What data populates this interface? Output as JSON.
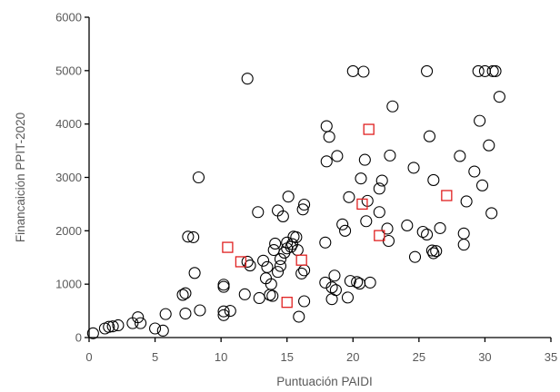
{
  "chart_data": {
    "type": "scatter",
    "title": "",
    "xlabel": "Puntuación PAIDI",
    "ylabel": "Financaición PPIT-2020",
    "xlim": [
      0,
      35
    ],
    "ylim": [
      0,
      6000
    ],
    "xticks": [
      0,
      5,
      10,
      15,
      20,
      25,
      30,
      35
    ],
    "yticks": [
      0,
      1000,
      2000,
      3000,
      4000,
      5000,
      6000
    ],
    "grid": false,
    "legend": "none",
    "series": [
      {
        "marker": "circle",
        "color": "#000000",
        "points": [
          [
            0.3,
            80
          ],
          [
            1.2,
            170
          ],
          [
            1.5,
            200
          ],
          [
            1.8,
            210
          ],
          [
            2.2,
            230
          ],
          [
            3.3,
            270
          ],
          [
            3.7,
            380
          ],
          [
            3.9,
            270
          ],
          [
            5.0,
            170
          ],
          [
            5.6,
            130
          ],
          [
            5.8,
            440
          ],
          [
            7.1,
            800
          ],
          [
            7.3,
            830
          ],
          [
            7.3,
            450
          ],
          [
            7.5,
            1890
          ],
          [
            7.9,
            1880
          ],
          [
            8.0,
            1210
          ],
          [
            8.3,
            3000
          ],
          [
            8.4,
            510
          ],
          [
            10.2,
            990
          ],
          [
            10.2,
            950
          ],
          [
            10.2,
            490
          ],
          [
            10.2,
            420
          ],
          [
            10.7,
            500
          ],
          [
            11.8,
            810
          ],
          [
            12.0,
            1420
          ],
          [
            12.2,
            1350
          ],
          [
            12.0,
            4850
          ],
          [
            12.8,
            2350
          ],
          [
            12.9,
            740
          ],
          [
            13.2,
            1440
          ],
          [
            13.5,
            1320
          ],
          [
            13.4,
            1110
          ],
          [
            13.8,
            1000
          ],
          [
            13.7,
            800
          ],
          [
            13.9,
            780
          ],
          [
            14.0,
            1640
          ],
          [
            14.1,
            1760
          ],
          [
            14.3,
            2380
          ],
          [
            14.3,
            1230
          ],
          [
            14.5,
            1470
          ],
          [
            14.5,
            1340
          ],
          [
            14.7,
            2270
          ],
          [
            14.8,
            1590
          ],
          [
            15.0,
            1670
          ],
          [
            15.0,
            1780
          ],
          [
            15.1,
            2640
          ],
          [
            15.3,
            1700
          ],
          [
            15.4,
            1750
          ],
          [
            15.5,
            1890
          ],
          [
            15.7,
            1880
          ],
          [
            15.8,
            1640
          ],
          [
            15.9,
            390
          ],
          [
            16.1,
            1200
          ],
          [
            16.2,
            2400
          ],
          [
            16.3,
            2490
          ],
          [
            16.3,
            1260
          ],
          [
            16.3,
            680
          ],
          [
            17.9,
            1780
          ],
          [
            17.9,
            1030
          ],
          [
            18.0,
            3300
          ],
          [
            18.0,
            3960
          ],
          [
            18.2,
            3760
          ],
          [
            18.4,
            940
          ],
          [
            18.4,
            720
          ],
          [
            18.6,
            1160
          ],
          [
            18.7,
            890
          ],
          [
            18.8,
            3400
          ],
          [
            19.2,
            2120
          ],
          [
            19.4,
            2000
          ],
          [
            19.6,
            750
          ],
          [
            19.7,
            2630
          ],
          [
            19.8,
            1060
          ],
          [
            20.0,
            4990
          ],
          [
            20.3,
            1040
          ],
          [
            20.5,
            1010
          ],
          [
            20.6,
            2980
          ],
          [
            20.9,
            3330
          ],
          [
            20.8,
            4980
          ],
          [
            21.0,
            2180
          ],
          [
            21.1,
            2560
          ],
          [
            21.3,
            1030
          ],
          [
            22.0,
            2790
          ],
          [
            22.0,
            2350
          ],
          [
            22.2,
            2940
          ],
          [
            22.6,
            2040
          ],
          [
            22.7,
            1810
          ],
          [
            22.8,
            3410
          ],
          [
            23.0,
            4330
          ],
          [
            24.1,
            2100
          ],
          [
            24.6,
            3180
          ],
          [
            24.7,
            1510
          ],
          [
            25.3,
            1980
          ],
          [
            25.6,
            1930
          ],
          [
            25.6,
            4990
          ],
          [
            25.8,
            3770
          ],
          [
            26.0,
            1630
          ],
          [
            26.1,
            2950
          ],
          [
            26.1,
            1580
          ],
          [
            26.3,
            1620
          ],
          [
            26.6,
            2050
          ],
          [
            28.1,
            3400
          ],
          [
            28.4,
            1740
          ],
          [
            28.6,
            2550
          ],
          [
            28.4,
            1950
          ],
          [
            29.2,
            3110
          ],
          [
            29.5,
            4990
          ],
          [
            29.6,
            4060
          ],
          [
            29.8,
            2850
          ],
          [
            30.0,
            4990
          ],
          [
            30.3,
            3600
          ],
          [
            30.5,
            2330
          ],
          [
            30.6,
            4990
          ],
          [
            30.8,
            4990
          ],
          [
            31.1,
            4510
          ]
        ]
      },
      {
        "marker": "square",
        "color": "#e02020",
        "points": [
          [
            10.5,
            1690
          ],
          [
            11.5,
            1420
          ],
          [
            15.0,
            660
          ],
          [
            16.1,
            1450
          ],
          [
            21.2,
            3900
          ],
          [
            20.7,
            2500
          ],
          [
            22.0,
            1910
          ],
          [
            27.1,
            2660
          ]
        ]
      }
    ]
  }
}
